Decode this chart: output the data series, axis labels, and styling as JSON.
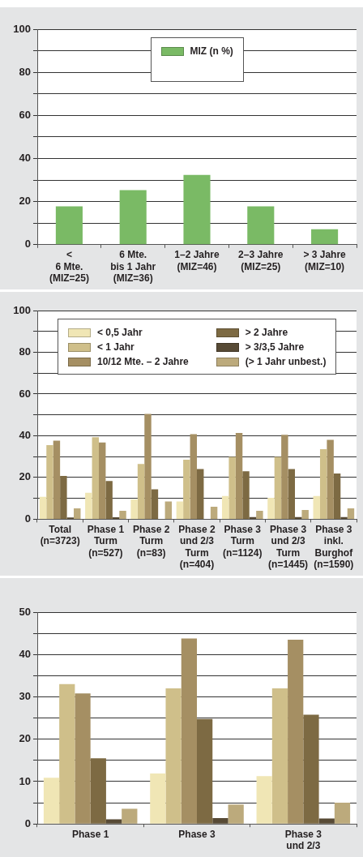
{
  "chart_data": [
    {
      "type": "bar",
      "categories": [
        "<\n6 Mte.\n(MIZ=25)",
        "6 Mte.\nbis 1 Jahr\n(MIZ=36)",
        "1–2 Jahre\n(MIZ=46)",
        "2–3 Jahre\n(MIZ=25)",
        "> 3 Jahre\n(MIZ=10)"
      ],
      "series": [
        {
          "name": "MIZ (n %)",
          "color": "#7aba65",
          "values": [
            17.8,
            25.3,
            32.4,
            17.8,
            7.2
          ]
        }
      ],
      "ylim": [
        0,
        100
      ],
      "yticks": [
        0,
        {
          "value": 10,
          "label": null
        },
        20,
        {
          "value": 30,
          "label": null
        },
        40,
        {
          "value": 50,
          "label": null
        },
        60,
        {
          "value": 70,
          "label": null
        },
        80,
        {
          "value": 90,
          "label": null
        },
        100
      ],
      "grid": "y",
      "legend": "top"
    },
    {
      "type": "bar",
      "categories": [
        "Total\n(n=3723)",
        "Phase 1\nTurm\n(n=527)",
        "Phase 2\nTurm\n(n=83)",
        "Phase 2\nund 2/3\nTurm\n(n=404)",
        "Phase 3\nTurm\n(n=1124)",
        "Phase 3\nund 2/3\nTurm\n(n=1445)",
        "Phase 3\ninkl.\nBurghof\n(n=1590)"
      ],
      "series": [
        {
          "name": "< 0,5 Jahr",
          "color": "#f0e6b5",
          "values": [
            10.7,
            12.7,
            9.5,
            8.5,
            11.1,
            10.3,
            11.1
          ]
        },
        {
          "name": "< 1 Jahr",
          "color": "#cfbf8a",
          "values": [
            35.5,
            39.3,
            26.5,
            28.5,
            29.9,
            29.9,
            33.6
          ]
        },
        {
          "name": "10/12 Mte. – 2 Jahre",
          "color": "#a58f63",
          "values": [
            37.6,
            36.8,
            50.5,
            40.8,
            41.3,
            40.5,
            38
          ]
        },
        {
          "name": "> 2 Jahre",
          "color": "#7d6a43",
          "values": [
            20.7,
            18.3,
            14.3,
            24,
            23,
            24,
            21.9
          ]
        },
        {
          "name": "> 3/3,5 Jahre",
          "color": "#574a35",
          "values": [
            0.8,
            0.9,
            0,
            null,
            1,
            1,
            1
          ]
        },
        {
          "name": "(> 1 Jahr unbest.)",
          "color": "#bcaa7c",
          "values": [
            5.2,
            4,
            8.5,
            6,
            4,
            4.4,
            5.2
          ]
        }
      ],
      "ylim": [
        0,
        100
      ],
      "yticks": [
        0,
        {
          "value": 10,
          "label": null
        },
        20,
        {
          "value": 30,
          "label": null
        },
        40,
        {
          "value": 50,
          "label": null
        },
        60,
        {
          "value": 70,
          "label": null
        },
        80,
        {
          "value": 90,
          "label": null
        },
        100
      ],
      "grid": "y",
      "legend": "top"
    },
    {
      "type": "bar",
      "categories": [
        "Phase 1",
        "Phase 3",
        "Phase 3\nund 2/3"
      ],
      "series": [
        {
          "color": "#f0e6b5",
          "values": [
            10.9,
            11.9,
            11.3
          ]
        },
        {
          "color": "#cfbf8a",
          "values": [
            33,
            32,
            32
          ]
        },
        {
          "color": "#a58f63",
          "values": [
            30.8,
            43.8,
            43.5
          ]
        },
        {
          "color": "#7d6a43",
          "values": [
            15.5,
            24.8,
            25.8
          ]
        },
        {
          "color": "#574a35",
          "values": [
            1.1,
            1.4,
            1.3
          ]
        },
        {
          "color": "#bcaa7c",
          "values": [
            3.6,
            4.6,
            5
          ]
        }
      ],
      "ylim": [
        0,
        50
      ],
      "yticks": [
        0,
        {
          "value": 5,
          "label": null
        },
        10,
        {
          "value": 15,
          "label": null
        },
        20,
        {
          "value": 25,
          "label": null
        },
        30,
        {
          "value": 35,
          "label": null
        },
        40,
        {
          "value": 45,
          "label": null
        },
        50
      ],
      "grid": "y"
    }
  ]
}
